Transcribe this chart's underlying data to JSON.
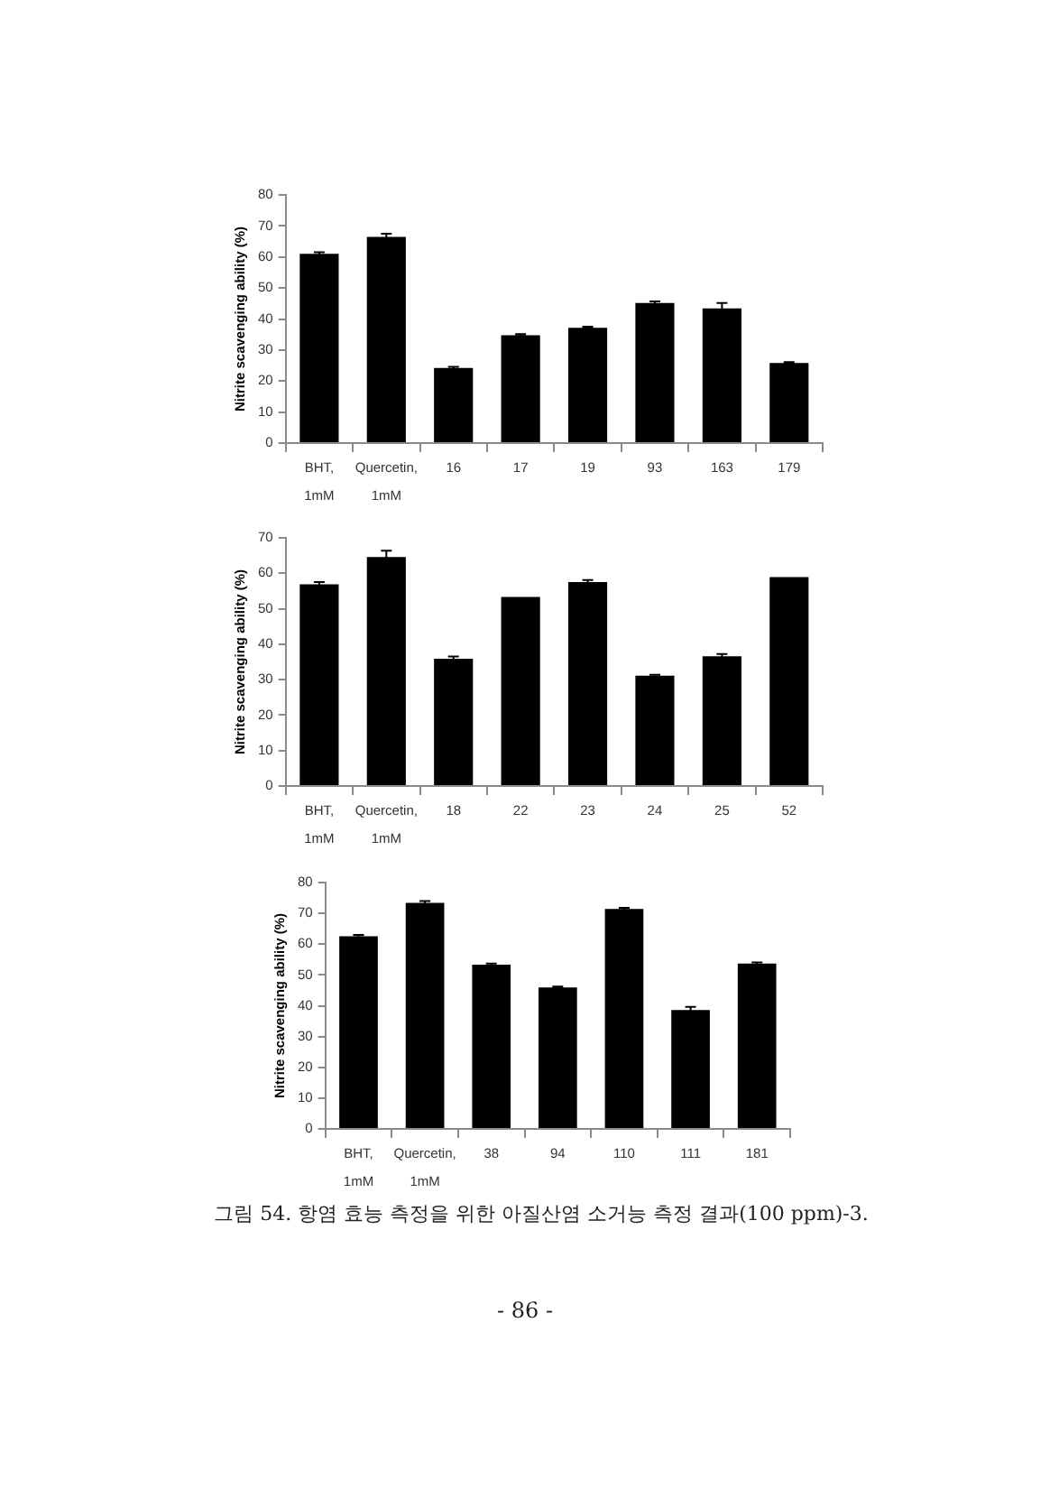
{
  "chart_data": [
    {
      "type": "bar",
      "categories": [
        "BHT, 1mM",
        "Quercetin, 1mM",
        "16",
        "17",
        "19",
        "93",
        "163",
        "179"
      ],
      "values": [
        61,
        66.5,
        24.2,
        34.8,
        37.2,
        45.2,
        43.4,
        25.8
      ],
      "errors": [
        0.5,
        1,
        0.4,
        0.3,
        0.3,
        0.5,
        1.8,
        0.3
      ],
      "color": "#000000",
      "ylabel": "Nitrite scavenging ability (%)",
      "ylim": [
        0,
        80
      ],
      "yticks": [
        0,
        10,
        20,
        30,
        40,
        50,
        60,
        70,
        80
      ]
    },
    {
      "type": "bar",
      "categories": [
        "BHT, 1mM",
        "Quercetin, 1mM",
        "18",
        "22",
        "23",
        "24",
        "25",
        "52"
      ],
      "values": [
        56.9,
        64.6,
        35.9,
        53.3,
        57.5,
        31.1,
        36.6,
        58.9
      ],
      "errors": [
        0.6,
        1.8,
        0.6,
        null,
        0.6,
        0.3,
        0.6,
        null
      ],
      "color": "#000000",
      "ylabel": "Nitrite scavenging ability (%)",
      "ylim": [
        0,
        70
      ],
      "yticks": [
        0,
        10,
        20,
        30,
        40,
        50,
        60,
        70
      ]
    },
    {
      "type": "bar",
      "categories": [
        "BHT, 1mM",
        "Quercetin, 1mM",
        "38",
        "94",
        "110",
        "111",
        "181"
      ],
      "values": [
        62.6,
        73.4,
        53.3,
        45.9,
        71.4,
        38.6,
        53.7
      ],
      "errors": [
        0.4,
        0.6,
        0.4,
        0.3,
        0.4,
        1,
        0.4
      ],
      "color": "#000000",
      "ylabel": "Nitrite scavenging ability (%)",
      "ylim": [
        0,
        80
      ],
      "yticks": [
        0,
        10,
        20,
        30,
        40,
        50,
        60,
        70,
        80
      ],
      "annotations": [
        "그림 54. 항염 효능 측정을 위한 아질산염 소거능 측정 결과(100 ppm)-3.",
        "- 86 -"
      ]
    }
  ]
}
